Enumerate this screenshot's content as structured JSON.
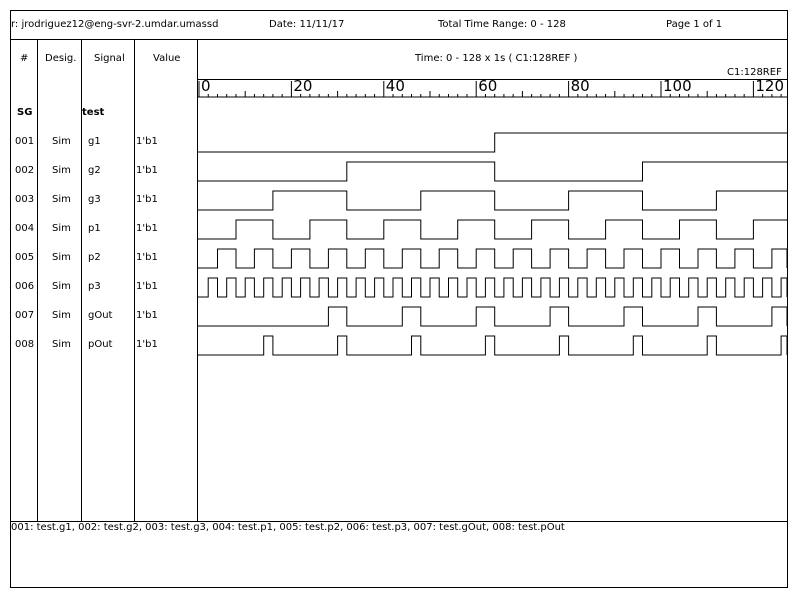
{
  "header": {
    "user": "r: jrodriguez12@eng-svr-2.umdar.umassd",
    "date": "Date: 11/11/17",
    "range": "Total Time Range: 0 - 128",
    "page": "Page 1 of 1"
  },
  "columns": {
    "num": "#",
    "desig": "Desig.",
    "signal": "Signal",
    "value": "Value",
    "time": "Time: 0 - 128 x 1s ( C1:128REF )",
    "cursor": "C1:128REF"
  },
  "ruler": {
    "min": 0,
    "max": 128,
    "labels": [
      "0",
      "20",
      "40",
      "60",
      "80",
      "100",
      "120"
    ]
  },
  "group": {
    "name": "SG",
    "label": "test"
  },
  "signals": [
    {
      "num": "001",
      "desig": "Sim",
      "name": "g1",
      "value": "1'b1",
      "transitions": [
        64
      ]
    },
    {
      "num": "002",
      "desig": "Sim",
      "name": "g2",
      "value": "1'b1",
      "transitions": [
        32,
        64,
        96
      ]
    },
    {
      "num": "003",
      "desig": "Sim",
      "name": "g3",
      "value": "1'b1",
      "transitions": [
        16,
        32,
        48,
        64,
        80,
        96,
        112
      ]
    },
    {
      "num": "004",
      "desig": "Sim",
      "name": "p1",
      "value": "1'b1",
      "transitions": [
        8,
        16,
        24,
        32,
        40,
        48,
        56,
        64,
        72,
        80,
        88,
        96,
        104,
        112,
        120
      ]
    },
    {
      "num": "005",
      "desig": "Sim",
      "name": "p2",
      "value": "1'b1",
      "period": 8
    },
    {
      "num": "006",
      "desig": "Sim",
      "name": "p3",
      "value": "1'b1",
      "period": 4
    },
    {
      "num": "007",
      "desig": "Sim",
      "name": "gOut",
      "value": "1'b1",
      "transitions": [
        28,
        32,
        44,
        48,
        60,
        64,
        76,
        80,
        92,
        96,
        108,
        112,
        124,
        128
      ]
    },
    {
      "num": "008",
      "desig": "Sim",
      "name": "pOut",
      "value": "1'b1",
      "transitions": [
        14,
        16,
        30,
        32,
        46,
        48,
        62,
        64,
        78,
        80,
        94,
        96,
        110,
        112,
        126,
        128
      ]
    }
  ],
  "footer": "001: test.g1, 002: test.g2, 003: test.g3, 004: test.p1, 005: test.p2, 006: test.p3, 007: test.gOut, 008: test.pOut"
}
